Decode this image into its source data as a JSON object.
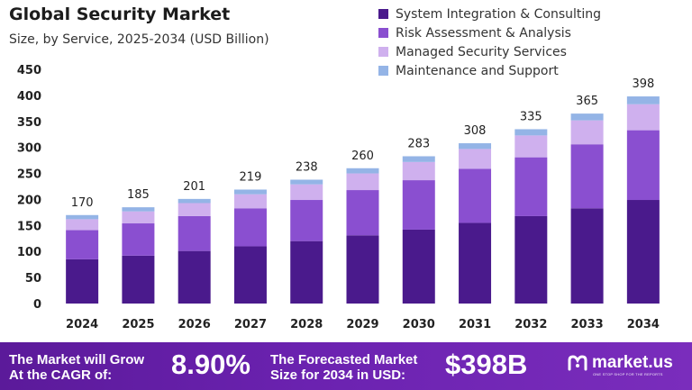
{
  "chart_data": {
    "type": "bar",
    "stacked": true,
    "title": "Global Security Market",
    "subtitle": "Size, by Service, 2025-2034 (USD Billion)",
    "xlabel": "",
    "ylabel": "",
    "ylim": [
      0,
      450
    ],
    "yticks": [
      0,
      50,
      100,
      150,
      200,
      250,
      300,
      350,
      400,
      450
    ],
    "categories": [
      "2024",
      "2025",
      "2026",
      "2027",
      "2028",
      "2029",
      "2030",
      "2031",
      "2032",
      "2033",
      "2034"
    ],
    "totals": [
      170,
      185,
      201,
      219,
      238,
      260,
      283,
      308,
      335,
      365,
      398
    ],
    "series": [
      {
        "name": "System Integration & Consulting",
        "color": "#4a1a8c",
        "values": [
          85,
          92,
          101,
          110,
          120,
          131,
          142,
          155,
          168,
          183,
          199
        ]
      },
      {
        "name": "Risk Assessment & Analysis",
        "color": "#8a4fd0",
        "values": [
          56,
          62,
          67,
          73,
          79,
          87,
          95,
          104,
          113,
          123,
          134
        ]
      },
      {
        "name": "Managed Security Services",
        "color": "#cfb0ee",
        "values": [
          21,
          23,
          25,
          27,
          30,
          32,
          35,
          38,
          42,
          46,
          50
        ]
      },
      {
        "name": "Maintenance and Support",
        "color": "#94b4e6",
        "values": [
          8,
          8,
          8,
          9,
          9,
          10,
          11,
          11,
          12,
          13,
          15
        ]
      }
    ],
    "legend_position": "top-right",
    "grid": false
  },
  "footer": {
    "cagr_text_line1": "The Market will Grow",
    "cagr_text_line2": "At the CAGR of:",
    "cagr_value": "8.90%",
    "forecast_text_line1": "The Forecasted Market",
    "forecast_text_line2": "Size for 2034 in USD:",
    "forecast_value": "$398B",
    "brand": "market.us",
    "brand_tagline": "ONE STOP SHOP FOR THE REPORTS"
  }
}
